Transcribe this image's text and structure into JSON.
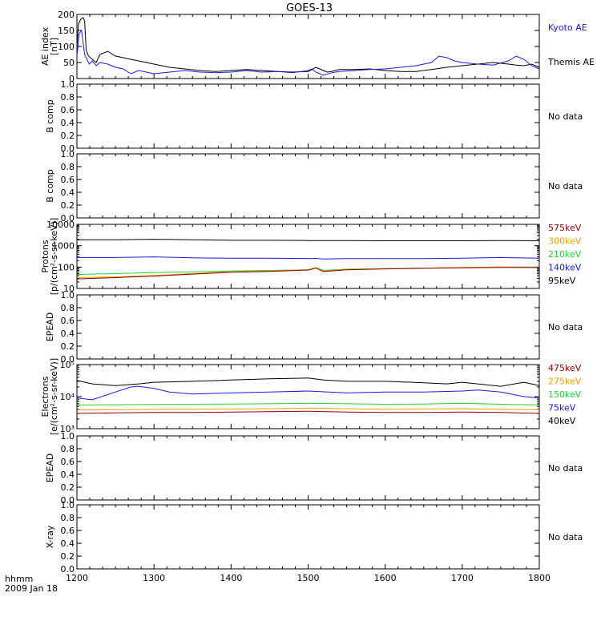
{
  "title": "GOES-13",
  "bottom": {
    "label_line1": "hhmm",
    "label_line2": "2009 Jan 18",
    "ticks": [
      "1200",
      "1300",
      "1400",
      "1500",
      "1600",
      "1700",
      "1800"
    ]
  },
  "colors": {
    "black": "#000000",
    "blue": "#1a1ad6",
    "green": "#22d22e",
    "orange": "#f0a000",
    "darkred": "#8b0000"
  },
  "chart_data": [
    {
      "type": "line",
      "ylabel": [
        "AE index",
        "[nT]"
      ],
      "scale": "linear",
      "ylim": [
        0,
        200
      ],
      "yticks": [
        "0",
        "50",
        "100",
        "150",
        "200"
      ],
      "x_range": [
        1200,
        1800
      ],
      "legend": [
        {
          "label": "Kyoto AE",
          "color": "#1a1ad6"
        },
        {
          "label": "Themis AE",
          "color": "#000000"
        }
      ],
      "series": [
        {
          "name": "Themis AE",
          "color": "#000000",
          "x": [
            1200,
            1202,
            1205,
            1208,
            1210,
            1212,
            1215,
            1220,
            1225,
            1230,
            1240,
            1250,
            1260,
            1270,
            1280,
            1290,
            1300,
            1320,
            1340,
            1360,
            1380,
            1400,
            1420,
            1440,
            1460,
            1480,
            1500,
            1505,
            1510,
            1515,
            1520,
            1525,
            1530,
            1540,
            1560,
            1580,
            1600,
            1620,
            1640,
            1660,
            1680,
            1700,
            1720,
            1740,
            1760,
            1770,
            1780,
            1790,
            1800
          ],
          "y": [
            95,
            170,
            185,
            190,
            180,
            90,
            70,
            60,
            50,
            75,
            85,
            70,
            65,
            60,
            55,
            50,
            45,
            35,
            30,
            25,
            22,
            25,
            28,
            25,
            22,
            20,
            22,
            28,
            35,
            30,
            25,
            20,
            22,
            28,
            28,
            30,
            25,
            22,
            22,
            28,
            35,
            40,
            45,
            50,
            45,
            42,
            40,
            45,
            35
          ]
        },
        {
          "name": "Kyoto AE",
          "color": "#1a1ad6",
          "x": [
            1200,
            1203,
            1206,
            1210,
            1213,
            1216,
            1220,
            1225,
            1230,
            1240,
            1250,
            1260,
            1270,
            1280,
            1290,
            1300,
            1320,
            1340,
            1360,
            1380,
            1400,
            1420,
            1440,
            1460,
            1480,
            1500,
            1505,
            1510,
            1515,
            1520,
            1530,
            1540,
            1560,
            1580,
            1600,
            1620,
            1640,
            1660,
            1670,
            1680,
            1690,
            1700,
            1720,
            1740,
            1760,
            1770,
            1780,
            1790,
            1800
          ],
          "y": [
            70,
            140,
            150,
            75,
            60,
            45,
            55,
            40,
            50,
            45,
            35,
            30,
            15,
            25,
            20,
            15,
            20,
            25,
            20,
            18,
            20,
            25,
            20,
            22,
            18,
            25,
            30,
            20,
            15,
            10,
            18,
            22,
            25,
            28,
            30,
            35,
            40,
            50,
            70,
            65,
            55,
            50,
            45,
            42,
            55,
            70,
            60,
            40,
            30
          ]
        }
      ]
    },
    {
      "type": "line",
      "ylabel": [
        "B comp"
      ],
      "scale": "linear",
      "ylim": [
        0,
        1
      ],
      "yticks": [
        "0.0",
        "0.2",
        "0.4",
        "0.6",
        "0.8",
        "1.0"
      ],
      "x_range": [
        1200,
        1800
      ],
      "status": "No data",
      "series": []
    },
    {
      "type": "line",
      "ylabel": [
        "B comp"
      ],
      "scale": "linear",
      "ylim": [
        0,
        1
      ],
      "yticks": [
        "0.0",
        "0.2",
        "0.4",
        "0.6",
        "0.8",
        "1.0"
      ],
      "x_range": [
        1200,
        1800
      ],
      "status": "No data",
      "series": []
    },
    {
      "type": "line",
      "ylabel": [
        "Protons",
        "[p/(cm²-s-sr-keV)]"
      ],
      "scale": "log",
      "ylim": [
        10,
        10000
      ],
      "yticks": [
        "10",
        "100",
        "1000",
        "10000"
      ],
      "x_range": [
        1200,
        1800
      ],
      "legend": [
        {
          "label": "575keV",
          "color": "#8b0000"
        },
        {
          "label": "300keV",
          "color": "#f0a000"
        },
        {
          "label": "210keV",
          "color": "#22d22e"
        },
        {
          "label": "140keV",
          "color": "#1a1ad6"
        },
        {
          "label": "95keV",
          "color": "#000000"
        }
      ],
      "series": [
        {
          "name": "95keV",
          "color": "#000000",
          "x": [
            1200,
            1250,
            1300,
            1350,
            1400,
            1450,
            1500,
            1550,
            1600,
            1650,
            1700,
            1750,
            1800
          ],
          "y": [
            1900,
            1900,
            2000,
            1900,
            1800,
            1800,
            1750,
            1750,
            1700,
            1700,
            1700,
            1750,
            1700
          ]
        },
        {
          "name": "140keV",
          "color": "#1a1ad6",
          "x": [
            1200,
            1250,
            1300,
            1350,
            1400,
            1450,
            1500,
            1510,
            1520,
            1550,
            1600,
            1650,
            1700,
            1750,
            1800
          ],
          "y": [
            280,
            280,
            300,
            270,
            260,
            260,
            250,
            255,
            240,
            250,
            250,
            250,
            260,
            280,
            260
          ]
        },
        {
          "name": "210keV",
          "color": "#22d22e",
          "x": [
            1200,
            1250,
            1300,
            1350,
            1400,
            1450,
            1500,
            1510,
            1520,
            1550,
            1600,
            1650,
            1700,
            1750,
            1800
          ],
          "y": [
            45,
            50,
            55,
            60,
            65,
            70,
            75,
            95,
            70,
            80,
            85,
            90,
            95,
            100,
            100
          ]
        },
        {
          "name": "300keV",
          "color": "#f0a000",
          "x": [
            1200,
            1250,
            1300,
            1350,
            1400,
            1450,
            1500,
            1510,
            1520,
            1550,
            1600,
            1650,
            1700,
            1750,
            1800
          ],
          "y": [
            32,
            35,
            40,
            50,
            60,
            65,
            75,
            92,
            65,
            78,
            85,
            90,
            95,
            100,
            98
          ]
        },
        {
          "name": "575keV",
          "color": "#8b0000",
          "x": [
            1200,
            1250,
            1300,
            1350,
            1400,
            1450,
            1500,
            1510,
            1520,
            1550,
            1600,
            1650,
            1700,
            1750,
            1800
          ],
          "y": [
            28,
            32,
            38,
            47,
            57,
            63,
            72,
            90,
            62,
            75,
            82,
            87,
            92,
            97,
            95
          ]
        }
      ]
    },
    {
      "type": "line",
      "ylabel": [
        "EPEAD"
      ],
      "scale": "linear",
      "ylim": [
        0,
        1
      ],
      "yticks": [
        "0.0",
        "0.2",
        "0.4",
        "0.6",
        "0.8",
        "1.0"
      ],
      "x_range": [
        1200,
        1800
      ],
      "status": "No data",
      "series": []
    },
    {
      "type": "line",
      "ylabel": [
        "Electrons",
        "[e/(cm²-s-sr-keV)]"
      ],
      "scale": "log",
      "ylim": [
        1000,
        100000
      ],
      "yticks": [
        "10³",
        "10⁴",
        "10⁵"
      ],
      "x_range": [
        1200,
        1800
      ],
      "legend": [
        {
          "label": "475keV",
          "color": "#8b0000"
        },
        {
          "label": "275keV",
          "color": "#f0a000"
        },
        {
          "label": "150keV",
          "color": "#22d22e"
        },
        {
          "label": "75keV",
          "color": "#1a1ad6"
        },
        {
          "label": "40keV",
          "color": "#000000"
        }
      ],
      "series": [
        {
          "name": "40keV",
          "color": "#000000",
          "x": [
            1200,
            1220,
            1250,
            1280,
            1300,
            1350,
            1400,
            1450,
            1500,
            1520,
            1550,
            1600,
            1650,
            1680,
            1700,
            1720,
            1750,
            1780,
            1800
          ],
          "y": [
            32000,
            25000,
            22000,
            25000,
            28000,
            30000,
            33000,
            36000,
            38000,
            33000,
            30000,
            30000,
            27000,
            25000,
            28000,
            25000,
            21000,
            28000,
            22000
          ]
        },
        {
          "name": "75keV",
          "color": "#1a1ad6",
          "x": [
            1200,
            1220,
            1250,
            1270,
            1280,
            1300,
            1320,
            1350,
            1400,
            1450,
            1500,
            1550,
            1600,
            1650,
            1700,
            1720,
            1750,
            1780,
            1800
          ],
          "y": [
            9000,
            8000,
            14000,
            20000,
            21000,
            18000,
            14000,
            12000,
            13000,
            14000,
            15000,
            13000,
            14000,
            14000,
            15000,
            16000,
            14000,
            10000,
            9000
          ]
        },
        {
          "name": "150keV",
          "color": "#22d22e",
          "x": [
            1200,
            1250,
            1300,
            1350,
            1400,
            1450,
            1500,
            1550,
            1600,
            1650,
            1700,
            1750,
            1800
          ],
          "y": [
            5500,
            5600,
            5700,
            5800,
            5900,
            6000,
            6200,
            6000,
            5800,
            5900,
            6200,
            5800,
            5500
          ]
        },
        {
          "name": "275keV",
          "color": "#f0a000",
          "x": [
            1200,
            1250,
            1300,
            1350,
            1400,
            1450,
            1500,
            1550,
            1600,
            1650,
            1700,
            1750,
            1800
          ],
          "y": [
            3800,
            3900,
            4000,
            4000,
            4100,
            4200,
            4400,
            4200,
            4000,
            4100,
            4200,
            4000,
            3900
          ]
        },
        {
          "name": "475keV",
          "color": "#8b0000",
          "x": [
            1200,
            1250,
            1300,
            1350,
            1400,
            1450,
            1500,
            1550,
            1600,
            1650,
            1700,
            1750,
            1800
          ],
          "y": [
            3000,
            3100,
            3200,
            3200,
            3300,
            3400,
            3500,
            3300,
            3200,
            3200,
            3300,
            3200,
            3000
          ]
        }
      ]
    },
    {
      "type": "line",
      "ylabel": [
        "EPEAD"
      ],
      "scale": "linear",
      "ylim": [
        0,
        1
      ],
      "yticks": [
        "0.0",
        "0.2",
        "0.4",
        "0.6",
        "0.8",
        "1.0"
      ],
      "x_range": [
        1200,
        1800
      ],
      "status": "No data",
      "series": []
    },
    {
      "type": "line",
      "ylabel": [
        "X-ray"
      ],
      "scale": "linear",
      "ylim": [
        0,
        1
      ],
      "yticks": [
        "0.0",
        "0.2",
        "0.4",
        "0.6",
        "0.8",
        "1.0"
      ],
      "x_range": [
        1200,
        1800
      ],
      "status": "No data",
      "series": []
    }
  ]
}
